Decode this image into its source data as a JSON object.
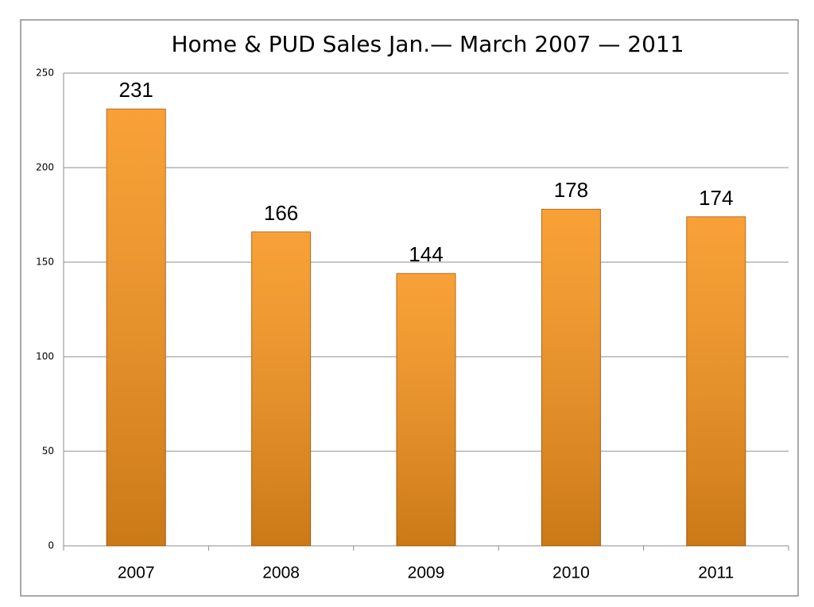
{
  "chart_data": {
    "type": "bar",
    "title": "Home & PUD Sales Jan.— March 2007 — 2011",
    "categories": [
      "2007",
      "2008",
      "2009",
      "2010",
      "2011"
    ],
    "values": [
      231,
      166,
      144,
      178,
      174
    ],
    "color": "#f7941d",
    "ylim": [
      0,
      250
    ],
    "yticks": [
      0,
      50,
      100,
      150,
      200,
      250
    ],
    "grid": true
  }
}
